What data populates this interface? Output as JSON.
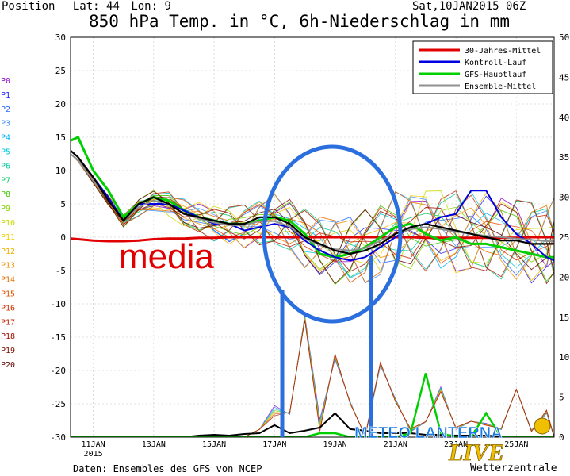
{
  "header": {
    "position_label": "Position",
    "lat_label": "Lat:",
    "lat_value": "44",
    "lon_label": "Lon:",
    "lon_value": "9",
    "date_label": "Sat,10JAN2015 06Z",
    "title": "850 hPa Temp. in °C, 6h-Niederschlag in mm"
  },
  "footer": {
    "source": "Daten: Ensembles des GFS von NCEP",
    "credit": "Wetterzentrale"
  },
  "annotations": {
    "media_label": "media",
    "logo_text": "METEO LANTERNA",
    "logo_script": "LIVE"
  },
  "colors": {
    "red": "#e00000",
    "blue": "#0000e0",
    "green": "#00d000",
    "gray": "#909090",
    "circle": "#2b6fde",
    "member": [
      "#8a00c8",
      "#2020ff",
      "#2a6aff",
      "#3a8cff",
      "#00b0ff",
      "#00c8d8",
      "#00c8a0",
      "#00c860",
      "#40c800",
      "#80d000",
      "#c8d800",
      "#f0d000",
      "#f0b000",
      "#f09000",
      "#e87000",
      "#e05000",
      "#d03000",
      "#c02000",
      "#a01000",
      "#801000",
      "#600000"
    ]
  },
  "chart_data": {
    "type": "line",
    "title": "850 hPa Temp. in °C, 6h-Niederschlag in mm",
    "xlabel": "",
    "ylabel": "",
    "x_ticks": [
      "11JAN",
      "13JAN",
      "15JAN",
      "17JAN",
      "19JAN",
      "21JAN",
      "23JAN",
      "25JAN"
    ],
    "x_tick_day": [
      11,
      13,
      15,
      17,
      19,
      21,
      23,
      25
    ],
    "x_year_label": "2015",
    "xlim": [
      10.25,
      26.25
    ],
    "ylim_left": [
      -30,
      30
    ],
    "yticks_left": [
      30,
      25,
      20,
      15,
      10,
      5,
      0,
      -5,
      -10,
      -15,
      -20,
      -25,
      -30
    ],
    "ylim_right": [
      0,
      50
    ],
    "yticks_right": [
      50,
      45,
      40,
      35,
      30,
      25,
      20,
      15,
      10,
      5,
      0
    ],
    "grid": true,
    "legend_position": "top-right",
    "legend": [
      {
        "name": "30-Jahres-Mittel",
        "color": "#e00000"
      },
      {
        "name": "Kontroll-Lauf",
        "color": "#0000e0"
      },
      {
        "name": "GFS-Hauptlauf",
        "color": "#00d000"
      },
      {
        "name": "Ensemble-Mittel",
        "color": "#909090"
      }
    ],
    "member_labels": [
      "P0",
      "P1",
      "P2",
      "P3",
      "P4",
      "P5",
      "P6",
      "P7",
      "P8",
      "P9",
      "P10",
      "P11",
      "P12",
      "P13",
      "P14",
      "P15",
      "P16",
      "P17",
      "P18",
      "P19",
      "P20"
    ],
    "day": [
      10.25,
      10.5,
      11,
      11.5,
      12,
      12.5,
      13,
      13.5,
      14,
      14.5,
      15,
      15.5,
      16,
      16.5,
      17,
      17.5,
      18,
      18.5,
      19,
      19.5,
      20,
      20.5,
      21,
      21.5,
      22,
      22.5,
      23,
      23.5,
      24,
      24.5,
      25,
      25.5,
      26,
      26.25
    ],
    "series": [
      {
        "name": "30-Jahres-Mittel",
        "values": [
          -0.2,
          -0.3,
          -0.5,
          -0.6,
          -0.6,
          -0.5,
          -0.3,
          -0.2,
          -0.2,
          -0.1,
          -0.1,
          0,
          0,
          0,
          0,
          0,
          0,
          0,
          0,
          0,
          0,
          0,
          0,
          0,
          -0.1,
          -0.1,
          -0.1,
          -0.1,
          -0.1,
          -0.1,
          -0.1,
          0,
          0,
          0
        ]
      },
      {
        "name": "GFS-Hauptlauf",
        "values": [
          14.5,
          15,
          10,
          7,
          3,
          5,
          6,
          5.5,
          4,
          3,
          2.5,
          2,
          2,
          2.5,
          3,
          2.5,
          0.5,
          -2.5,
          -3,
          -2.5,
          -1.5,
          0,
          1.5,
          2,
          0.5,
          -0.5,
          0,
          -1,
          -1,
          -1.5,
          -2,
          -2.5,
          -3,
          -3
        ]
      },
      {
        "name": "Kontroll-Lauf",
        "values": [
          13,
          12,
          9,
          6,
          2.5,
          5,
          5,
          5,
          4,
          3,
          2,
          2,
          1,
          1.5,
          2,
          1.5,
          -0.5,
          -2,
          -3,
          -3.5,
          -3,
          -1.5,
          0,
          1.5,
          2,
          3,
          3.5,
          7,
          7,
          3,
          0.5,
          -1,
          -3,
          -3.5
        ]
      },
      {
        "name": "Ensemble-Mittel",
        "values": [
          12.5,
          11.5,
          8.5,
          5.5,
          2.5,
          4.5,
          5.5,
          5,
          3.5,
          2.8,
          2.2,
          1.8,
          1.8,
          2.4,
          2.4,
          1.6,
          -0.2,
          -1.2,
          -1.8,
          -2,
          -1.6,
          -0.5,
          0.5,
          1.2,
          1.5,
          1.2,
          0.8,
          0.5,
          0.2,
          0,
          -0.2,
          -0.4,
          -0.6,
          -0.6
        ]
      },
      {
        "name": "Ensemble-Mittel (schwarz)",
        "values": [
          13,
          12,
          9,
          5.5,
          2.5,
          5,
          6,
          5,
          3.5,
          3,
          2.5,
          2,
          2,
          3,
          3,
          2,
          0,
          -1,
          -2,
          -2.5,
          -2,
          -1,
          0.5,
          1.5,
          2,
          1.5,
          1,
          0.5,
          0,
          -0.5,
          -0.5,
          -1,
          -1,
          -1
        ]
      },
      {
        "name": "Niederschlag Ensemble-Mittel",
        "values": [
          0,
          0,
          0,
          0,
          0,
          0,
          0,
          0,
          0,
          0.2,
          0.3,
          0.2,
          0.4,
          0.5,
          1.5,
          0.5,
          0.8,
          1.2,
          3,
          1,
          0.8,
          0.5,
          0.5,
          0.5,
          0.3,
          0.3,
          0.2,
          0.2,
          0.2,
          0.1,
          0.1,
          0.1,
          0.1,
          0.1
        ]
      },
      {
        "name": "Niederschlag GFS-Hauptlauf",
        "values": [
          0,
          0,
          0,
          0,
          0,
          0,
          0,
          0,
          0,
          0,
          0,
          0,
          0,
          0,
          0,
          0,
          0,
          0.5,
          0.5,
          0,
          0,
          0,
          0,
          0.5,
          8,
          0.5,
          0,
          0,
          3,
          0,
          0,
          0,
          0,
          0
        ]
      },
      {
        "name": "Niederschlag Spitzen",
        "values": [
          0,
          0,
          0,
          0,
          0,
          0,
          0,
          0,
          0,
          0,
          0,
          0,
          0,
          1,
          13,
          4,
          16,
          15,
          12,
          5,
          2,
          10,
          6,
          4,
          2,
          9,
          3,
          2,
          3,
          2,
          6,
          2,
          5,
          0
        ]
      }
    ]
  }
}
